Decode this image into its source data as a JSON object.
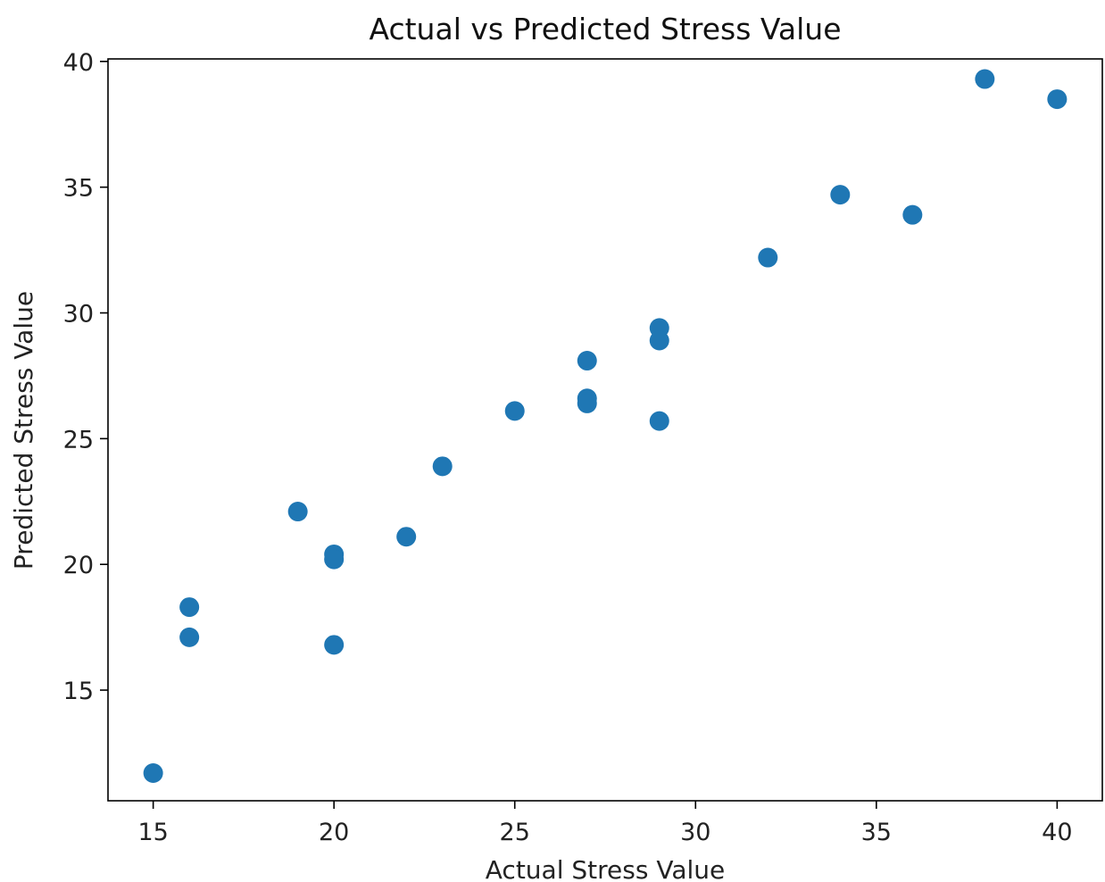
{
  "chart_data": {
    "type": "scatter",
    "title": "Actual vs Predicted Stress Value",
    "xlabel": "Actual Stress Value",
    "ylabel": "Predicted Stress Value",
    "xlim": [
      13.75,
      41.25
    ],
    "ylim": [
      10.6,
      40.1
    ],
    "xticks": [
      15,
      20,
      25,
      30,
      35,
      40
    ],
    "yticks": [
      15,
      20,
      25,
      30,
      35,
      40
    ],
    "grid": false,
    "marker_color": "#1f77b4",
    "series": [
      {
        "points": [
          {
            "x": 15,
            "y": 11.7
          },
          {
            "x": 16,
            "y": 18.3
          },
          {
            "x": 16,
            "y": 17.1
          },
          {
            "x": 19,
            "y": 22.1
          },
          {
            "x": 20,
            "y": 20.4
          },
          {
            "x": 20,
            "y": 20.2
          },
          {
            "x": 20,
            "y": 16.8
          },
          {
            "x": 22,
            "y": 21.1
          },
          {
            "x": 23,
            "y": 23.9
          },
          {
            "x": 25,
            "y": 26.1
          },
          {
            "x": 27,
            "y": 28.1
          },
          {
            "x": 27,
            "y": 26.6
          },
          {
            "x": 27,
            "y": 26.4
          },
          {
            "x": 29,
            "y": 29.4
          },
          {
            "x": 29,
            "y": 28.9
          },
          {
            "x": 29,
            "y": 25.7
          },
          {
            "x": 32,
            "y": 32.2
          },
          {
            "x": 34,
            "y": 34.7
          },
          {
            "x": 36,
            "y": 33.9
          },
          {
            "x": 38,
            "y": 39.3
          },
          {
            "x": 40,
            "y": 38.5
          }
        ]
      }
    ]
  }
}
